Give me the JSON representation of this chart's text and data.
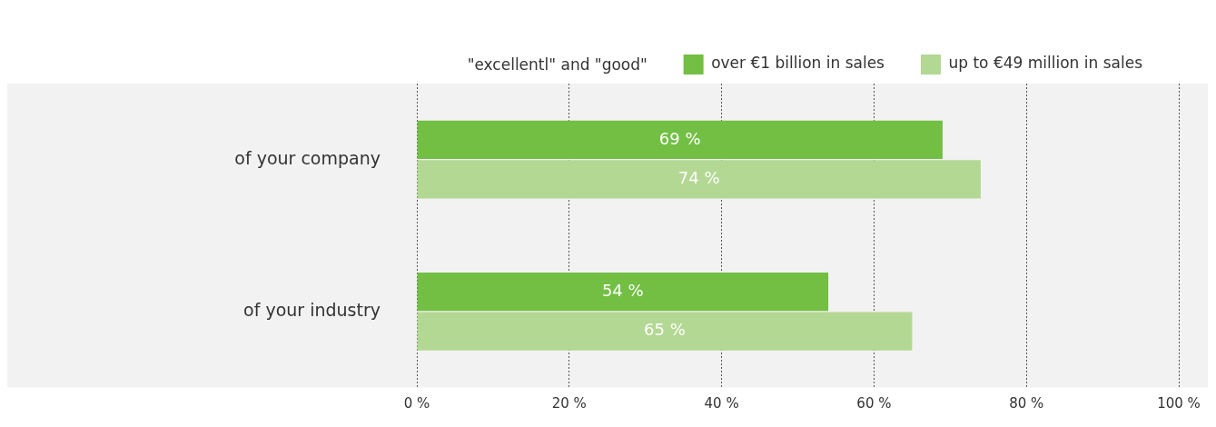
{
  "chart_data": {
    "type": "bar",
    "orientation": "horizontal",
    "legend_title": "\"excellentl\" and \"good\"",
    "categories": [
      "of your company",
      "of your industry"
    ],
    "series": [
      {
        "name": "over €1 billion in sales",
        "color": "#72bf44",
        "values": [
          69,
          54
        ],
        "value_labels": [
          "69 %",
          "54 %"
        ]
      },
      {
        "name": "up to €49 million in sales",
        "color": "#b3d893",
        "values": [
          74,
          65
        ],
        "value_labels": [
          "74 %",
          "65 %"
        ]
      }
    ],
    "xlim": [
      0,
      100
    ],
    "xticks": [
      {
        "value": 0,
        "label": "0 %"
      },
      {
        "value": 20,
        "label": "20 %"
      },
      {
        "value": 40,
        "label": "40 %"
      },
      {
        "value": 60,
        "label": "60 %"
      },
      {
        "value": 80,
        "label": "80 %"
      },
      {
        "value": 100,
        "label": "100 %"
      }
    ],
    "grid": "x",
    "legend": "top right"
  }
}
